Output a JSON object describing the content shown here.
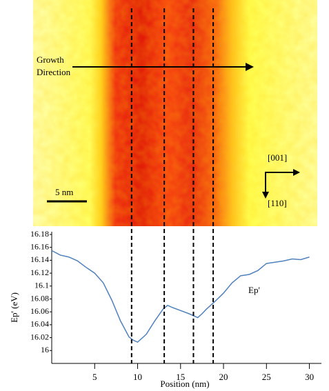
{
  "chart_data": {
    "type": "line",
    "image_annotations": {
      "growth_label_lines": [
        "Growth",
        "Direction"
      ],
      "scale_bar": "5 nm",
      "directions": [
        "[001]",
        "[110]"
      ]
    },
    "x_label": "Position (nm)",
    "y_label": "Ep' (eV)",
    "x": [
      0,
      1,
      2,
      3,
      4,
      5,
      6,
      7,
      8,
      9,
      9.5,
      10,
      11,
      12,
      13,
      13.5,
      14,
      15,
      16,
      17,
      17.5,
      18,
      19,
      20,
      21,
      22,
      23,
      24,
      25,
      26,
      27,
      28,
      29,
      30
    ],
    "series": [
      {
        "name": "Ep'",
        "color": "#4f81bd",
        "values": [
          16.155,
          16.148,
          16.145,
          16.139,
          16.129,
          16.12,
          16.105,
          16.078,
          16.046,
          16.021,
          16.016,
          16.013,
          16.025,
          16.046,
          16.065,
          16.07,
          16.067,
          16.062,
          16.057,
          16.051,
          16.057,
          16.064,
          16.076,
          16.089,
          16.105,
          16.116,
          16.118,
          16.124,
          16.135,
          16.137,
          16.139,
          16.142,
          16.141,
          16.145
        ]
      }
    ],
    "vlines_x": [
      9.3,
      13.1,
      16.5,
      18.8
    ],
    "xlim": [
      0,
      31.4
    ],
    "xticks": [
      5,
      10,
      15,
      20,
      25,
      30
    ],
    "ylim": [
      15.98,
      16.18
    ],
    "yticks": [
      16,
      16.02,
      16.04,
      16.06,
      16.08,
      16.1,
      16.12,
      16.14,
      16.16,
      16.18
    ]
  }
}
